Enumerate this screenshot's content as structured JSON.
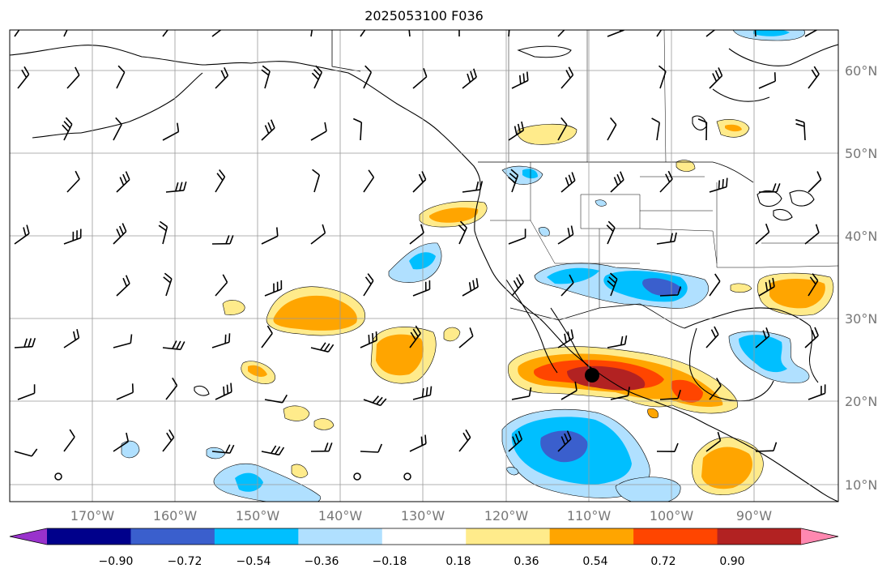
{
  "title": "2025053100 F036",
  "map": {
    "latitude_labels": [
      "60°N",
      "50°N",
      "40°N",
      "30°N",
      "20°N",
      "10°N"
    ],
    "longitude_labels": [
      "170°W",
      "160°W",
      "150°W",
      "140°W",
      "130°W",
      "120°W",
      "110°W",
      "100°W",
      "90°W"
    ],
    "gridlines": true,
    "features": [
      "coastlines",
      "country-borders",
      "state-borders",
      "wind-barbs",
      "shaded-field",
      "center-marker"
    ]
  },
  "colorbar": {
    "tick_labels": [
      "−0.90",
      "−0.72",
      "−0.54",
      "−0.36",
      "−0.18",
      "0.18",
      "0.36",
      "0.54",
      "0.72",
      "0.90"
    ],
    "colors": [
      "#9932cc",
      "#00008b",
      "#3a5fcd",
      "#00bfff",
      "#b0e0ff",
      "#ffffff",
      "#ffeb8b",
      "#ffa500",
      "#ff4500",
      "#b22222",
      "#ff88b0"
    ],
    "extend": "both"
  }
}
